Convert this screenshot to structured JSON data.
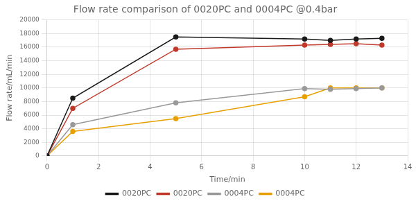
{
  "chart_data": {
    "type": "line",
    "title": "Flow rate comparison of 0020PC and 0004PC @0.4bar",
    "x_label": "Time/min",
    "y_label": "Flow rate/mL/min",
    "x": [
      0,
      1,
      5,
      10,
      11,
      12,
      13
    ],
    "series": [
      {
        "name": "0020PC",
        "color": "#1a1a1a",
        "values": [
          0,
          8500,
          17500,
          17200,
          17000,
          17200,
          17300
        ]
      },
      {
        "name": "0020PC",
        "color": "#C0392B",
        "values": [
          0,
          7000,
          15700,
          16300,
          16400,
          16500,
          16300
        ]
      },
      {
        "name": "0004PC",
        "color": "#999999",
        "values": [
          0,
          4600,
          7800,
          9900,
          9800,
          9900,
          10000
        ]
      },
      {
        "name": "0004PC",
        "color": "#E8A000",
        "values": [
          0,
          3600,
          5500,
          8700,
          10000,
          10000,
          10000
        ]
      }
    ],
    "xlim": [
      0,
      14
    ],
    "ylim": [
      0,
      20000
    ],
    "xticks": [
      0,
      2,
      4,
      6,
      8,
      10,
      12,
      14
    ],
    "yticks": [
      0,
      2000,
      4000,
      6000,
      8000,
      10000,
      12000,
      14000,
      16000,
      18000,
      20000
    ],
    "grid": true,
    "legend": "bottom",
    "marker": "o"
  }
}
